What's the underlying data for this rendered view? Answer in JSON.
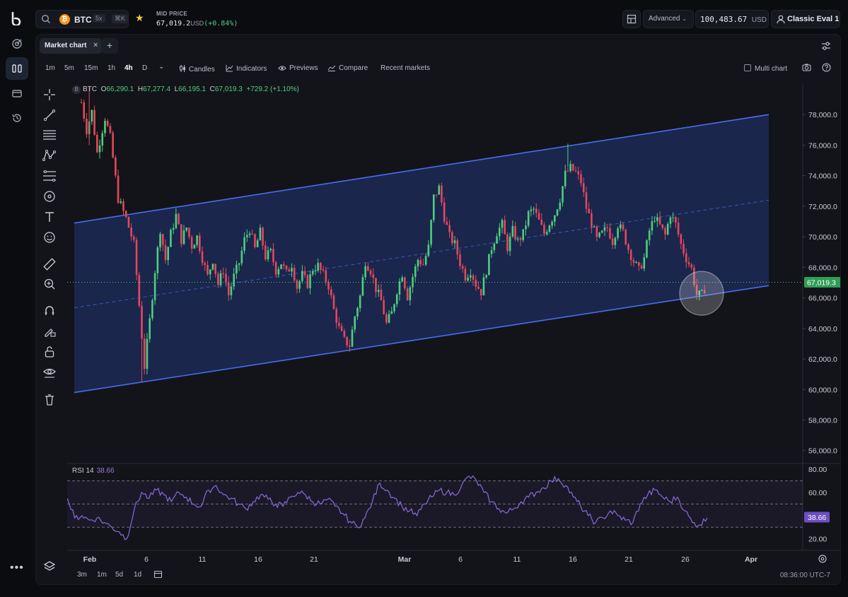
{
  "header": {
    "coin_symbol": "BTC",
    "coin_badge": "₿",
    "leverage": "5x",
    "shortcut": "⌘K",
    "mid_price_label": "MID PRICE",
    "mid_price_value": "67,019.2",
    "mid_price_unit": "USD",
    "mid_price_change": "(+0.84%)",
    "mode_label": "Advanced",
    "balance_value": "100,483.67",
    "balance_unit": "USD",
    "account_name": "Classic Eval 1"
  },
  "tabs": {
    "main_label": "Market chart",
    "close_glyph": "×",
    "add_glyph": "+"
  },
  "toolbar": {
    "timeframes": [
      "1m",
      "5m",
      "15m",
      "1h",
      "4h",
      "D"
    ],
    "active_timeframe": "4h",
    "candles_label": "Candles",
    "indicators_label": "Indicators",
    "previews_label": "Previews",
    "compare_label": "Compare",
    "recent_label": "Recent markets",
    "multi_chart_label": "Multi chart"
  },
  "ohlc": {
    "badge": "B",
    "symbol": "BTC",
    "o_label": "O",
    "o_value": "66,290.1",
    "h_label": "H",
    "h_value": "67,277.4",
    "l_label": "L",
    "l_value": "66,195.1",
    "c_label": "C",
    "c_value": "67,019.3",
    "change": "+729.2 (+1.10%)"
  },
  "rsi": {
    "label": "RSI 14",
    "value": "38.66"
  },
  "bottom": {
    "ranges": [
      "3m",
      "1m",
      "5d",
      "1d"
    ],
    "time_readout": "08:36:00 UTC-7"
  },
  "colors": {
    "up": "#4cd07d",
    "down": "#e5475c",
    "channel_line": "#4a6cf0",
    "channel_fill": "#1e2c5e",
    "rsi_line": "#8a6ad8",
    "price_tag": "#2f9e55",
    "rsi_tag": "#6b4fc2"
  },
  "chart_data": {
    "type": "candlestick",
    "symbol": "BTC",
    "interval": "4h",
    "y_axis": {
      "ticks": [
        "56,000.0",
        "58,000.0",
        "60,000.0",
        "62,000.0",
        "64,000.0",
        "66,000.0",
        "68,000.0",
        "70,000.0",
        "72,000.0",
        "74,000.0",
        "76,000.0",
        "78,000.0"
      ],
      "ylim": [
        55200,
        80000
      ]
    },
    "x_axis": {
      "ticks": [
        "Feb",
        "6",
        "11",
        "16",
        "21",
        "Mar",
        "6",
        "11",
        "16",
        "21",
        "26",
        "Apr"
      ]
    },
    "last_price": "67,019.3",
    "approx_close_path": [
      [
        0,
        78800
      ],
      [
        2,
        77000
      ],
      [
        4,
        78200
      ],
      [
        6,
        75500
      ],
      [
        9,
        77800
      ],
      [
        11,
        76500
      ],
      [
        14,
        72500
      ],
      [
        17,
        71200
      ],
      [
        20,
        69500
      ],
      [
        22,
        65500
      ],
      [
        24,
        61500
      ],
      [
        26,
        64500
      ],
      [
        28,
        67800
      ],
      [
        30,
        70500
      ],
      [
        32,
        68500
      ],
      [
        34,
        70200
      ],
      [
        36,
        71400
      ],
      [
        38,
        69800
      ],
      [
        40,
        70600
      ],
      [
        42,
        69400
      ],
      [
        44,
        70000
      ],
      [
        46,
        68600
      ],
      [
        48,
        67400
      ],
      [
        50,
        68500
      ],
      [
        52,
        66900
      ],
      [
        54,
        67800
      ],
      [
        56,
        66200
      ],
      [
        58,
        67400
      ],
      [
        60,
        68300
      ],
      [
        62,
        69800
      ],
      [
        64,
        70500
      ],
      [
        66,
        69200
      ],
      [
        68,
        70300
      ],
      [
        70,
        68700
      ],
      [
        72,
        69000
      ],
      [
        74,
        67800
      ],
      [
        76,
        68300
      ],
      [
        78,
        67600
      ],
      [
        80,
        68200
      ],
      [
        82,
        66700
      ],
      [
        84,
        67500
      ],
      [
        86,
        66900
      ],
      [
        88,
        67900
      ],
      [
        90,
        68100
      ],
      [
        92,
        67500
      ],
      [
        94,
        66800
      ],
      [
        96,
        65200
      ],
      [
        98,
        64000
      ],
      [
        100,
        63200
      ],
      [
        102,
        62900
      ],
      [
        104,
        64800
      ],
      [
        106,
        66100
      ],
      [
        108,
        68400
      ],
      [
        110,
        67800
      ],
      [
        112,
        66600
      ],
      [
        114,
        65800
      ],
      [
        116,
        64300
      ],
      [
        118,
        65000
      ],
      [
        120,
        66500
      ],
      [
        122,
        67600
      ],
      [
        124,
        66100
      ],
      [
        126,
        67400
      ],
      [
        128,
        68500
      ],
      [
        130,
        68200
      ],
      [
        132,
        69300
      ],
      [
        134,
        72600
      ],
      [
        136,
        73200
      ],
      [
        138,
        71300
      ],
      [
        140,
        70000
      ],
      [
        142,
        69500
      ],
      [
        144,
        68300
      ],
      [
        146,
        67400
      ],
      [
        148,
        67800
      ],
      [
        150,
        66900
      ],
      [
        152,
        66400
      ],
      [
        154,
        67800
      ],
      [
        156,
        69300
      ],
      [
        158,
        70300
      ],
      [
        160,
        70800
      ],
      [
        162,
        69300
      ],
      [
        164,
        70400
      ],
      [
        166,
        69700
      ],
      [
        168,
        70200
      ],
      [
        170,
        71500
      ],
      [
        172,
        71800
      ],
      [
        174,
        71000
      ],
      [
        176,
        70200
      ],
      [
        178,
        70900
      ],
      [
        180,
        71500
      ],
      [
        182,
        72500
      ],
      [
        184,
        74100
      ],
      [
        186,
        74500
      ],
      [
        188,
        74200
      ],
      [
        190,
        73600
      ],
      [
        192,
        71900
      ],
      [
        194,
        70900
      ],
      [
        196,
        69800
      ],
      [
        198,
        70200
      ],
      [
        200,
        70600
      ],
      [
        202,
        69700
      ],
      [
        204,
        70800
      ],
      [
        206,
        70300
      ],
      [
        208,
        69200
      ],
      [
        210,
        68400
      ],
      [
        212,
        67800
      ],
      [
        214,
        68600
      ],
      [
        216,
        70400
      ],
      [
        218,
        71300
      ],
      [
        220,
        70700
      ],
      [
        222,
        70100
      ],
      [
        224,
        71500
      ],
      [
        226,
        70800
      ],
      [
        228,
        69500
      ],
      [
        230,
        68600
      ],
      [
        232,
        67900
      ],
      [
        234,
        66200
      ],
      [
        236,
        66200
      ],
      [
        238,
        67000
      ]
    ],
    "channel": {
      "upper": {
        "from": [
          "Jan 30",
          70900
        ],
        "to": [
          "Mar 31",
          78000
        ]
      },
      "lower": {
        "from": [
          "Jan 30",
          59800
        ],
        "to": [
          "Mar 31",
          66800
        ]
      }
    },
    "rsi": {
      "period": 14,
      "current": 38.66,
      "levels": [
        30,
        50,
        70
      ],
      "ticks": [
        "20.00",
        "60.00",
        "80.00"
      ],
      "ylim": [
        10,
        85
      ],
      "approx_path": [
        55,
        38,
        40,
        36,
        38,
        34,
        30,
        26,
        20,
        45,
        60,
        55,
        62,
        58,
        52,
        60,
        56,
        50,
        48,
        62,
        66,
        58,
        55,
        50,
        46,
        52,
        58,
        54,
        50,
        48,
        56,
        60,
        58,
        52,
        50,
        54,
        48,
        42,
        35,
        30,
        38,
        52,
        68,
        62,
        55,
        48,
        44,
        40,
        50,
        56,
        62,
        60,
        58,
        66,
        74,
        70,
        60,
        52,
        46,
        42,
        46,
        52,
        56,
        60,
        64,
        70,
        72,
        66,
        56,
        48,
        40,
        34,
        38,
        44,
        40,
        36,
        34,
        50,
        58,
        62,
        56,
        52,
        56,
        44,
        34,
        32,
        38
      ]
    }
  }
}
